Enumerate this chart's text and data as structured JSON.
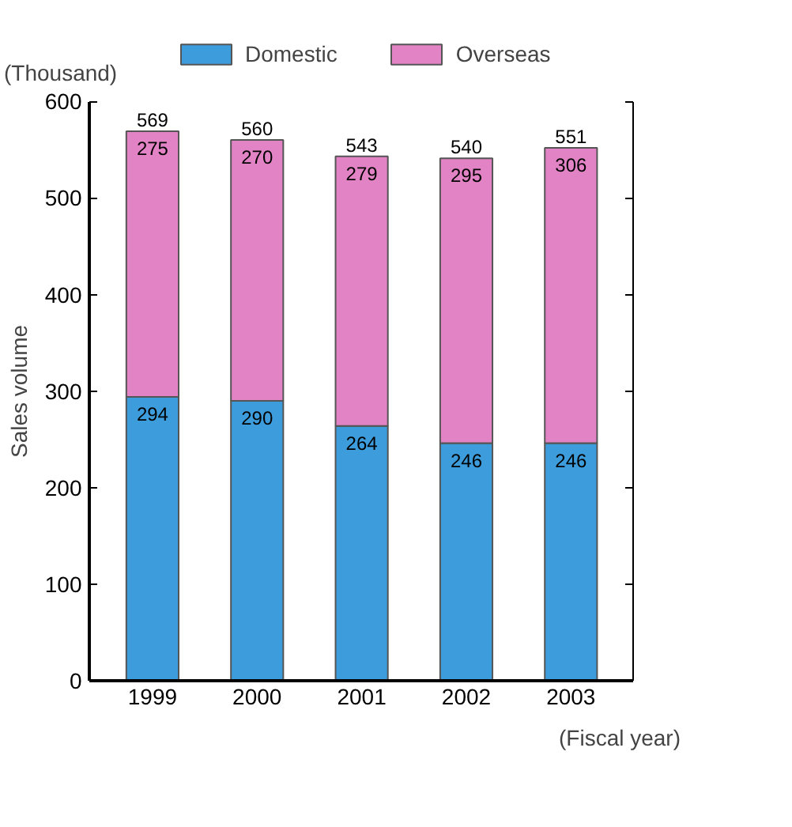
{
  "chart_data": {
    "type": "bar",
    "stacked": true,
    "ylabel": "Sales volume",
    "categories": [
      "1999",
      "2000",
      "2001",
      "2002",
      "2003"
    ],
    "series": [
      {
        "name": "Domestic",
        "color": "#3d9ddc",
        "values": [
          294,
          290,
          264,
          246,
          246
        ]
      },
      {
        "name": "Overseas",
        "color": "#e283c5",
        "values": [
          275,
          270,
          279,
          295,
          306
        ]
      }
    ],
    "totals": [
      "569",
      "560",
      "543",
      "540",
      "551"
    ],
    "data_labels": true,
    "ylim": [
      0,
      600
    ],
    "yticks": [
      0,
      100,
      200,
      300,
      400,
      500,
      600
    ],
    "grid": false,
    "legend": "top",
    "annotations": [
      "(Thousand)",
      "(Fiscal year)"
    ]
  }
}
